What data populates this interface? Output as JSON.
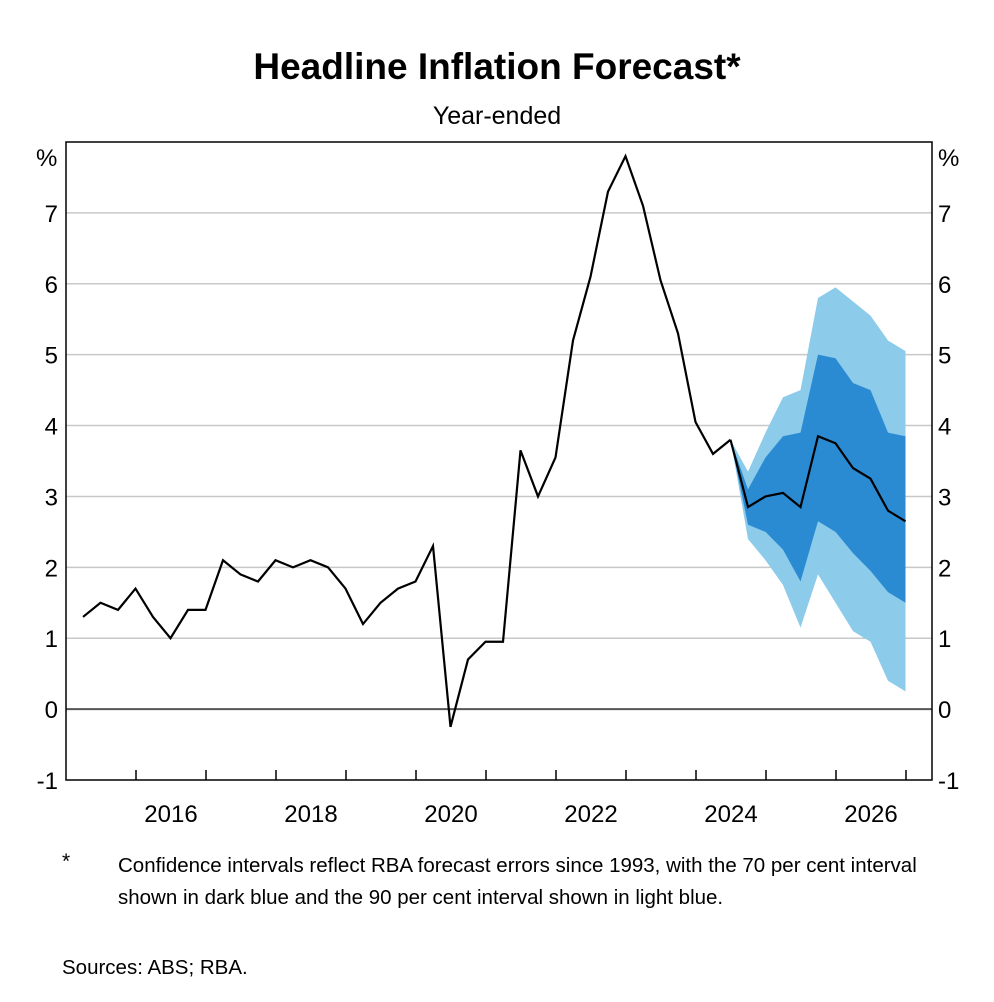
{
  "chart_data": {
    "type": "line",
    "title": "Headline Inflation Forecast*",
    "subtitle": "Year-ended",
    "ylabel_left": "%",
    "ylabel_right": "%",
    "ylim": [
      -1,
      8
    ],
    "yticks": [
      "-1",
      "0",
      "1",
      "2",
      "3",
      "4",
      "5",
      "6",
      "7"
    ],
    "xticks": [
      "2016",
      "2018",
      "2020",
      "2022",
      "2024",
      "2026"
    ],
    "x_start": "Mar 2015",
    "x_frequency": "quarterly",
    "colors": {
      "line": "#000000",
      "band70": "#2a8bd3",
      "band90": "#8ccbea",
      "grid": "#c8c8c8"
    },
    "series": [
      {
        "name": "Actual",
        "values": [
          1.3,
          1.5,
          1.4,
          1.7,
          1.3,
          1.0,
          1.4,
          1.4,
          2.1,
          1.9,
          1.8,
          2.1,
          2.0,
          2.1,
          2.0,
          1.7,
          1.2,
          1.5,
          1.7,
          1.8,
          2.3,
          -0.25,
          0.7,
          0.95,
          0.95,
          3.65,
          3.0,
          3.55,
          5.2,
          6.1,
          7.3,
          7.8,
          7.1,
          6.05,
          5.3,
          4.05,
          3.6,
          3.8
        ]
      },
      {
        "name": "Forecast",
        "start_index": 37,
        "values": [
          3.8,
          2.85,
          3.0,
          3.05,
          2.85,
          3.85,
          3.75,
          3.4,
          3.25,
          2.8,
          2.65
        ]
      },
      {
        "name": "70 per cent interval upper",
        "start_index": 37,
        "values": [
          3.8,
          3.1,
          3.55,
          3.85,
          3.9,
          5.0,
          4.95,
          4.6,
          4.5,
          3.9,
          3.85
        ]
      },
      {
        "name": "70 per cent interval lower",
        "start_index": 37,
        "values": [
          3.8,
          2.6,
          2.5,
          2.25,
          1.8,
          2.65,
          2.5,
          2.2,
          1.95,
          1.65,
          1.5
        ]
      },
      {
        "name": "90 per cent interval upper",
        "start_index": 37,
        "values": [
          3.8,
          3.35,
          3.9,
          4.4,
          4.5,
          5.8,
          5.95,
          5.75,
          5.55,
          5.2,
          5.05
        ]
      },
      {
        "name": "90 per cent interval lower",
        "start_index": 37,
        "values": [
          3.8,
          2.4,
          2.1,
          1.75,
          1.15,
          1.9,
          1.5,
          1.1,
          0.95,
          0.4,
          0.25
        ]
      }
    ]
  },
  "footnote": {
    "marker": "*",
    "text": "Confidence intervals reflect RBA forecast errors since 1993, with the 70 per cent interval shown in dark blue and the 90 per cent interval shown in light blue."
  },
  "sources": "Sources: ABS; RBA."
}
